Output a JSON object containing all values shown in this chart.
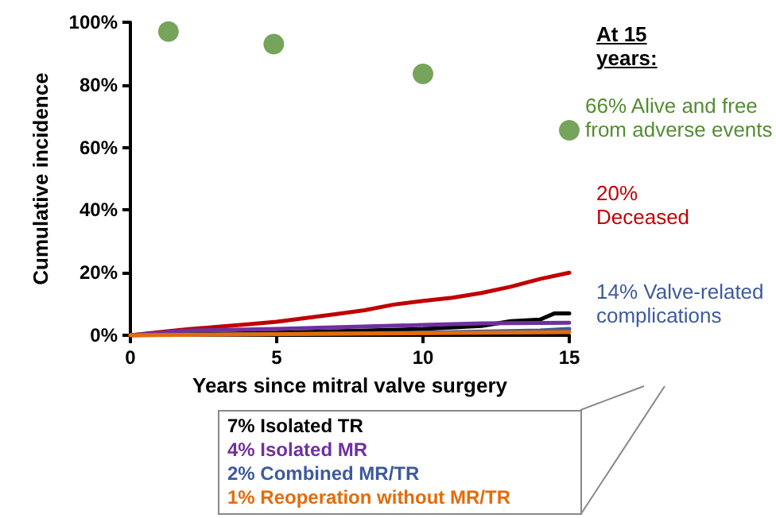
{
  "chart_data": {
    "type": "line",
    "xlabel": "Years since mitral valve surgery",
    "ylabel": "Cumulative incidence",
    "xlim": [
      0,
      15
    ],
    "xticks": [
      0,
      5,
      10,
      15
    ],
    "ylim": [
      0,
      100
    ],
    "yticks": [
      {
        "value": 0,
        "label": "0%"
      },
      {
        "value": 20,
        "label": "20%"
      },
      {
        "value": 40,
        "label": "40%"
      },
      {
        "value": 60,
        "label": "60%"
      },
      {
        "value": 80,
        "label": "80%"
      },
      {
        "value": 100,
        "label": "100%"
      }
    ],
    "grid": false,
    "legend": "bottom",
    "line_style": "solid",
    "series": [
      {
        "type": "scatter",
        "color": "#538d31",
        "x": [
          1.3,
          4.9,
          10,
          15
        ],
        "values": [
          97,
          93,
          83.5,
          65.5
        ]
      },
      {
        "color": "#c00000",
        "x": [
          0,
          1,
          2,
          3,
          4,
          5,
          6,
          7,
          8,
          9,
          10,
          11,
          12,
          13,
          14,
          15
        ],
        "values": [
          0,
          1,
          2,
          2.7,
          3.5,
          4.3,
          5.5,
          6.7,
          8,
          9.8,
          11,
          12,
          13.5,
          15.5,
          18,
          20
        ]
      },
      {
        "name": "7% Isolated TR",
        "color": "#000000",
        "x": [
          0,
          5,
          10,
          12,
          13,
          14,
          14.5,
          15
        ],
        "values": [
          0,
          0.8,
          2,
          3,
          4.5,
          5,
          7,
          7
        ]
      },
      {
        "name": "4% Isolated MR",
        "color": "#7030a0",
        "x": [
          0,
          2,
          5,
          10,
          12,
          15
        ],
        "values": [
          0,
          1.5,
          2,
          3.3,
          3.8,
          4
        ]
      },
      {
        "name": "2% Combined MR/TR",
        "color": "#3d5a9c",
        "x": [
          0,
          10,
          14,
          15
        ],
        "values": [
          0,
          0.8,
          1.5,
          2
        ]
      },
      {
        "name": "1% Reoperation without MR/TR",
        "color": "#e36c0a",
        "x": [
          0,
          15
        ],
        "values": [
          0,
          1
        ]
      }
    ],
    "annotations": [
      "At 15 years:",
      "14% Valve-related complications",
      {
        "text": "66% Alive and free from adverse events",
        "x": 15,
        "y": 65.5
      },
      {
        "text": "20% Deceased",
        "x": 15,
        "y": 20
      }
    ]
  }
}
